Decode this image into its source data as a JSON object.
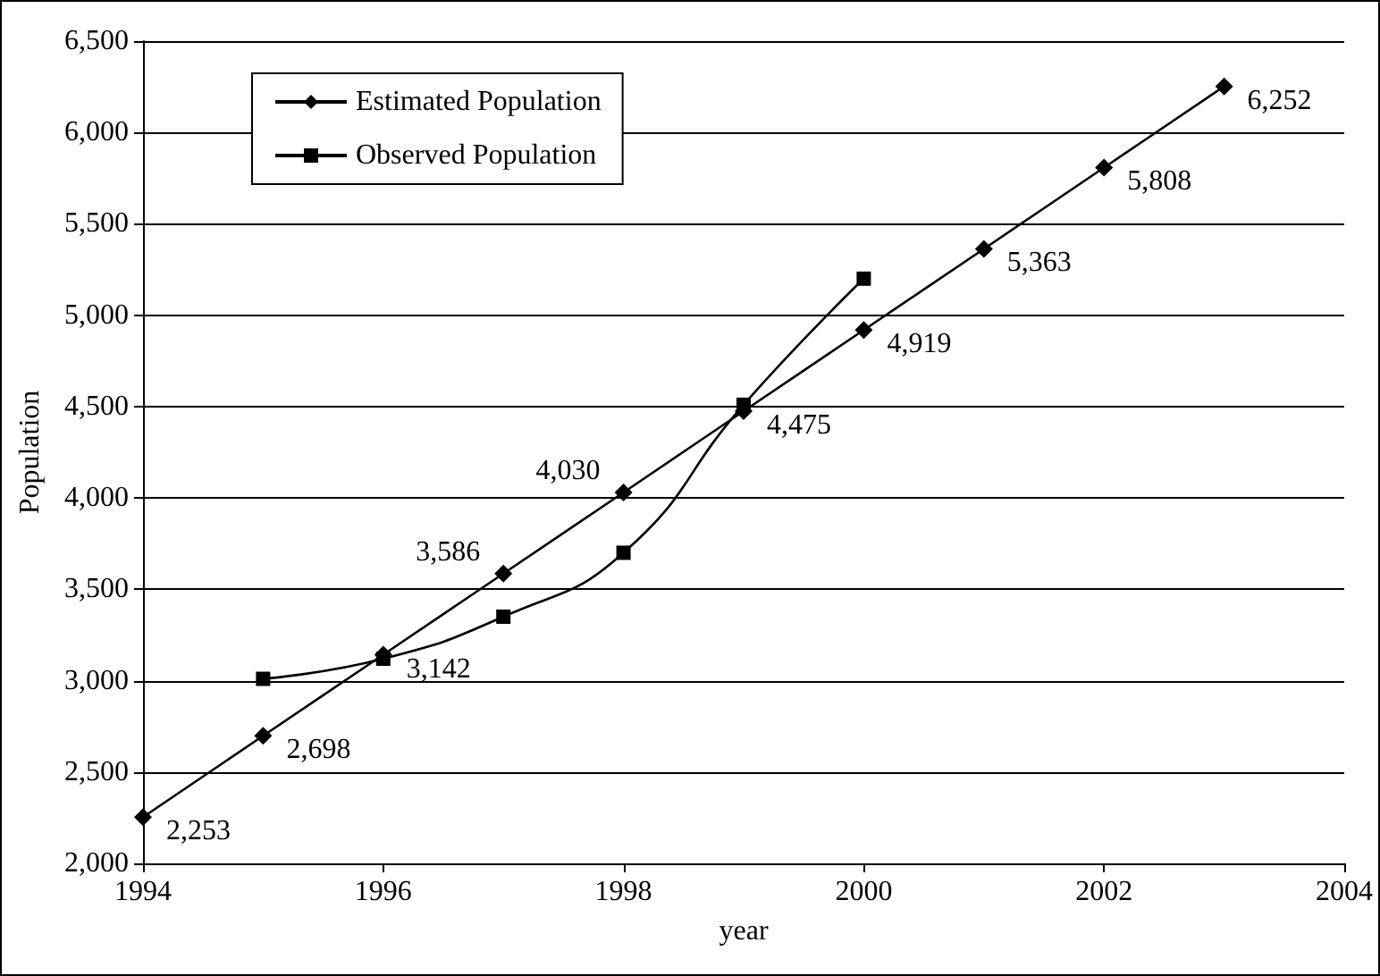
{
  "chart_data": {
    "type": "line",
    "xlabel": "year",
    "ylabel": "Population",
    "x": [
      1994,
      1995,
      1996,
      1997,
      1998,
      1999,
      2000,
      2001,
      2002,
      2003
    ],
    "series": [
      {
        "name": "Estimated Population",
        "color": "#000000",
        "marker": "diamond",
        "values": [
          2253,
          2698,
          3142,
          3586,
          4030,
          4475,
          4919,
          5363,
          5808,
          6252
        ],
        "value_labels": [
          "2,253",
          "2,698",
          "3,142",
          "3,586",
          "4,030",
          "4,475",
          "4,919",
          "5,363",
          "5,808",
          "6,252"
        ]
      },
      {
        "name": "Observed Population",
        "color": "#000000",
        "marker": "square",
        "x": [
          1995,
          1996,
          1997,
          1998,
          1999,
          2000
        ],
        "values": [
          3010,
          3120,
          3350,
          3700,
          4510,
          5200
        ]
      }
    ],
    "xlim": [
      1994,
      2004
    ],
    "xticks": [
      1994,
      1996,
      1998,
      2000,
      2002,
      2004
    ],
    "ylim": [
      2000,
      6500
    ],
    "yticks": [
      {
        "value": 2000,
        "label": "2,000"
      },
      {
        "value": 2500,
        "label": "2,500"
      },
      {
        "value": 3000,
        "label": "3,000"
      },
      {
        "value": 3500,
        "label": "3,500"
      },
      {
        "value": 4000,
        "label": "4,000"
      },
      {
        "value": 4500,
        "label": "4,500"
      },
      {
        "value": 5000,
        "label": "5,000"
      },
      {
        "value": 5500,
        "label": "5,500"
      },
      {
        "value": 6000,
        "label": "6,000"
      },
      {
        "value": 6500,
        "label": "6,500"
      }
    ],
    "grid": "y",
    "legend": "top left"
  }
}
